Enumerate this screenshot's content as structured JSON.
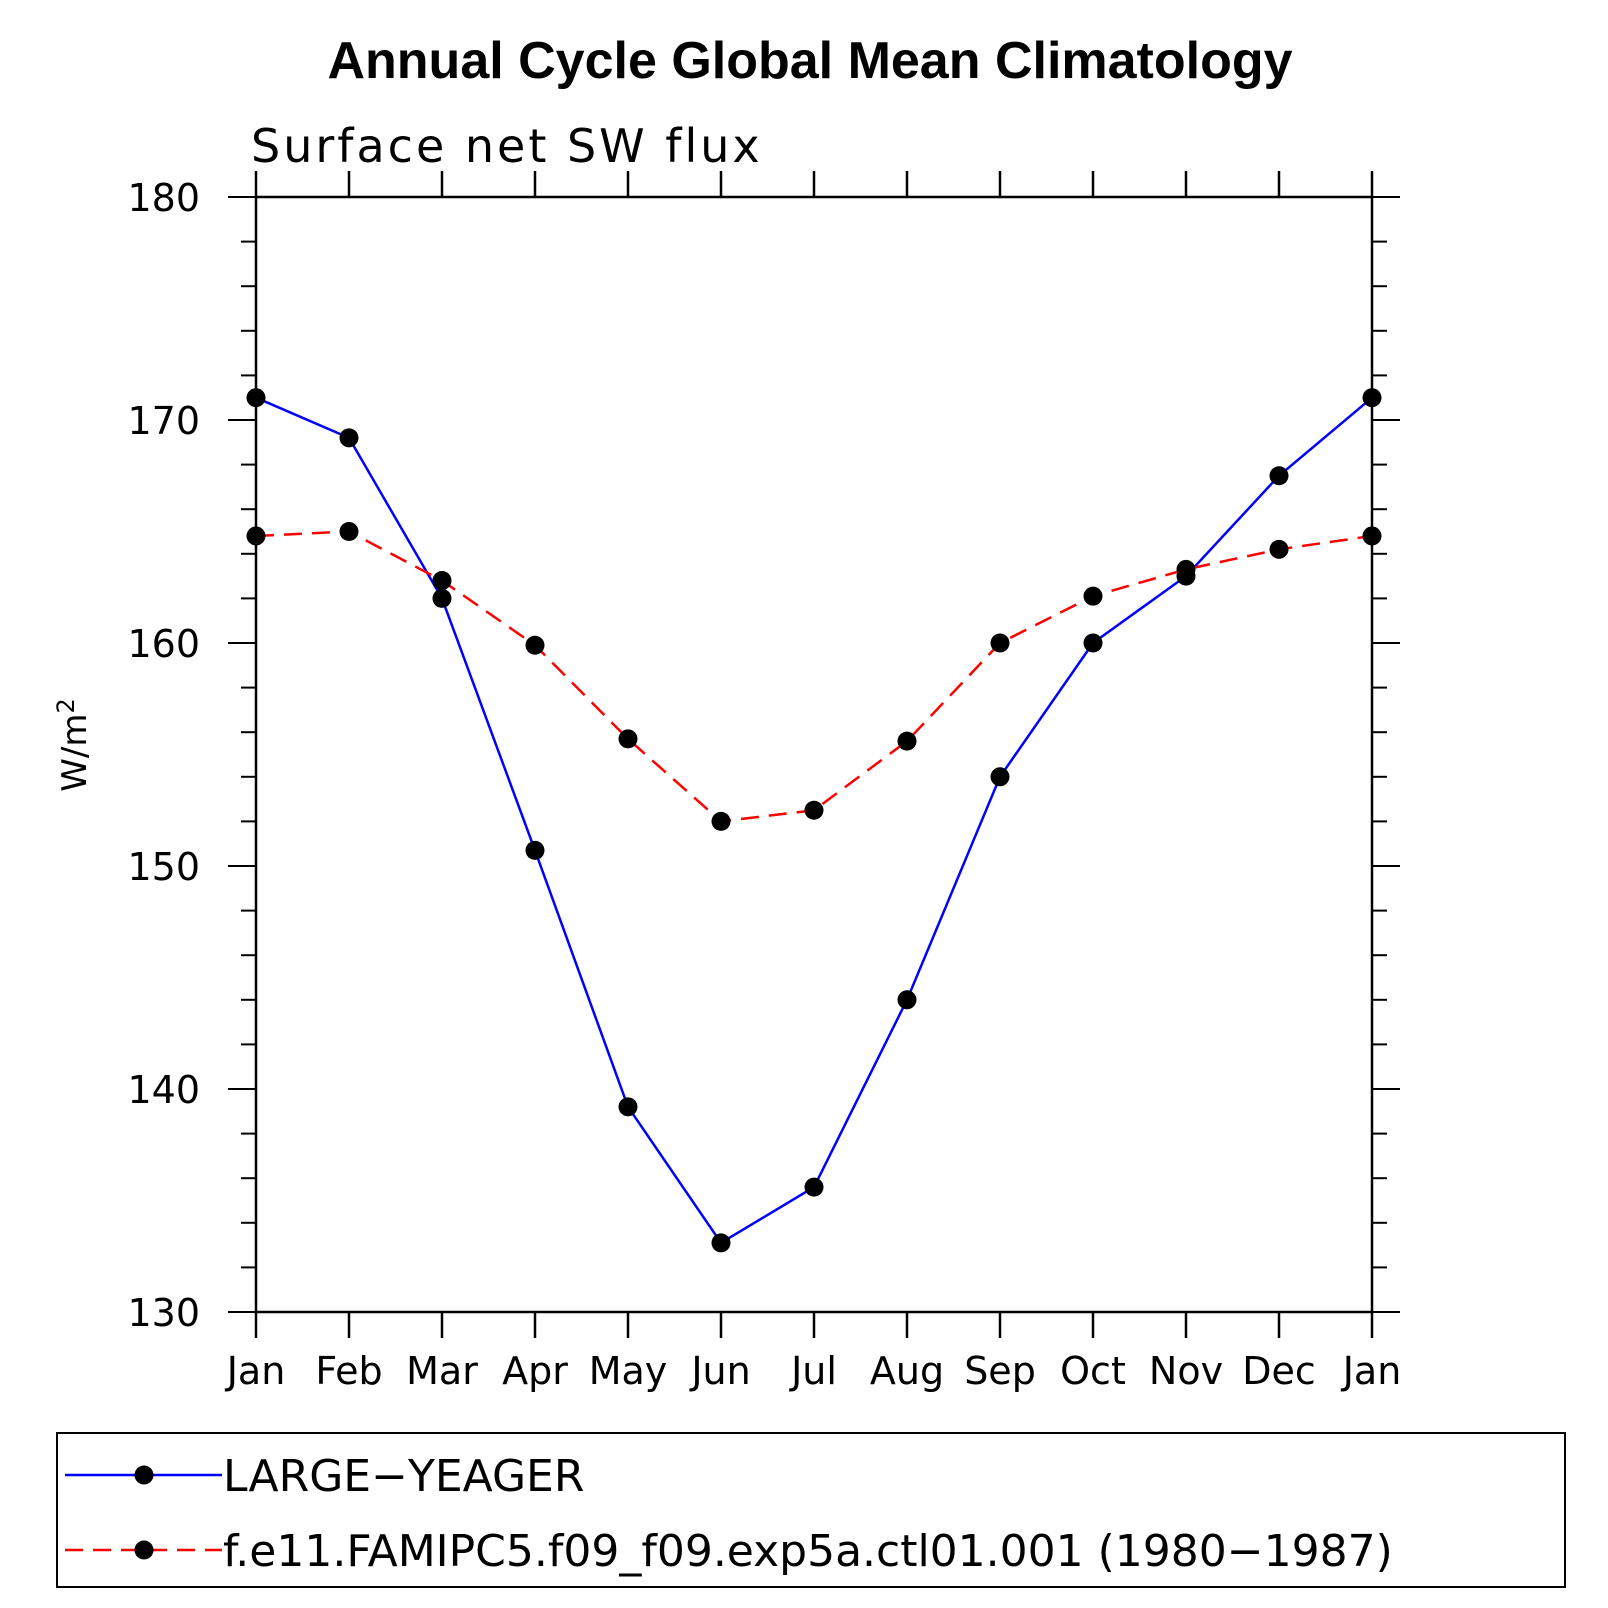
{
  "chart_data": {
    "type": "line",
    "title": "Annual Cycle Global Mean Climatology",
    "subtitle": "Surface net SW flux",
    "xlabel": "",
    "ylabel": "W/m",
    "ylabel_superscript": "2",
    "categories": [
      "Jan",
      "Feb",
      "Mar",
      "Apr",
      "May",
      "Jun",
      "Jul",
      "Aug",
      "Sep",
      "Oct",
      "Nov",
      "Dec",
      "Jan"
    ],
    "ylim": [
      130,
      180
    ],
    "yticks": [
      130,
      140,
      150,
      160,
      170,
      180
    ],
    "grid": false,
    "legend_position": "bottom",
    "series": [
      {
        "name": "LARGE−YEAGER",
        "color": "#0000ff",
        "line_style": "solid",
        "marker": "filled-circle",
        "values": [
          171.0,
          169.2,
          162.0,
          150.7,
          139.2,
          133.1,
          135.6,
          144.0,
          154.0,
          160.0,
          163.0,
          167.5,
          171.0
        ]
      },
      {
        "name": "f.e11.FAMIPC5.f09_f09.exp5a.ctl01.001 (1980−1987)",
        "color": "#ff0000",
        "line_style": "dashed",
        "marker": "filled-circle",
        "values": [
          164.8,
          165.0,
          162.8,
          159.9,
          155.7,
          152.0,
          152.5,
          155.6,
          160.0,
          162.1,
          163.3,
          164.2,
          164.8
        ]
      }
    ]
  }
}
